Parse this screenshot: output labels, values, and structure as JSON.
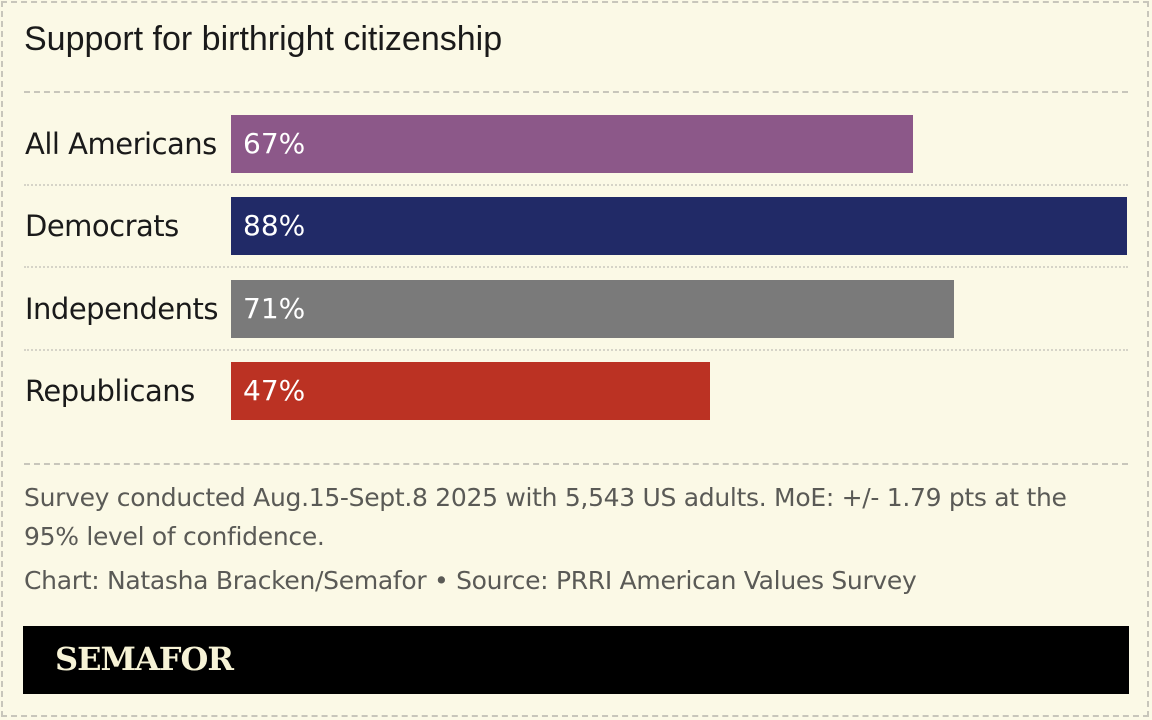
{
  "chart_data": {
    "type": "bar",
    "orientation": "horizontal",
    "title": "Support for birthright citizenship",
    "categories": [
      "All Americans",
      "Democrats",
      "Independents",
      "Republicans"
    ],
    "values": [
      67,
      88,
      71,
      47
    ],
    "data_labels": [
      "67%",
      "88%",
      "71%",
      "47%"
    ],
    "colors": [
      "#8c5889",
      "#212a67",
      "#7a7a7a",
      "#bb3223"
    ],
    "xlim": [
      0,
      88
    ],
    "grid": false,
    "legend": "none"
  },
  "note": "Survey conducted Aug.15-Sept.8 2025 with 5,543 US adults. MoE: +/- 1.79 pts at the 95% level of confidence.",
  "credit": "Chart: Natasha Bracken/Semafor • Source: PRRI American Values Survey",
  "brand": "SEMAFOR",
  "background": "#fbf9e6"
}
